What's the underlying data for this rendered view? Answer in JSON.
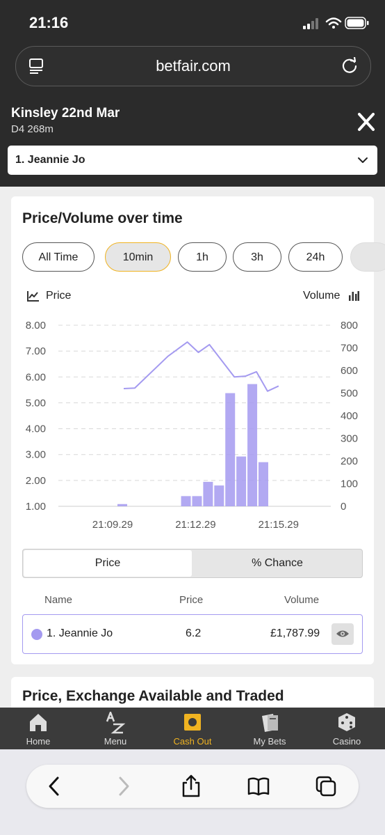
{
  "status": {
    "time": "21:16"
  },
  "browser": {
    "url": "betfair.com"
  },
  "market": {
    "title": "Kinsley 22nd Mar",
    "subtitle": "D4 268m",
    "selected_runner": "1. Jeannie Jo"
  },
  "card": {
    "title": "Price/Volume over time",
    "ranges": [
      "All Time",
      "10min",
      "1h",
      "3h",
      "24h"
    ],
    "active_range": "10min",
    "legend_price": "Price",
    "legend_volume": "Volume"
  },
  "chart_data": {
    "type": "bar+line",
    "x_ticks": [
      "21:09.29",
      "21:12.29",
      "21:15.29"
    ],
    "y_left_ticks": [
      "8.00",
      "7.00",
      "6.00",
      "5.00",
      "4.00",
      "3.00",
      "2.00",
      "1.00"
    ],
    "y_right_ticks": [
      "800",
      "700",
      "600",
      "500",
      "400",
      "300",
      "200",
      "100",
      "0"
    ],
    "y_left_range": [
      1,
      8
    ],
    "y_right_range": [
      0,
      800
    ],
    "grid": "dashed horizontal",
    "colors": {
      "series": "#a49af0"
    },
    "price_line": {
      "x_minutes": [
        0.0,
        0.4,
        1.6,
        2.3,
        2.7,
        3.1,
        4.0,
        4.4,
        4.8,
        5.2,
        5.6
      ],
      "y": [
        5.55,
        5.57,
        6.8,
        7.35,
        6.95,
        7.25,
        6.0,
        6.03,
        6.2,
        5.45,
        5.65
      ]
    },
    "volume_bars": {
      "x_minutes": [
        0.0,
        2.3,
        2.7,
        3.1,
        3.5,
        3.9,
        4.3,
        4.7,
        5.1
      ],
      "y": [
        10,
        45,
        45,
        108,
        92,
        500,
        220,
        540,
        195
      ]
    }
  },
  "toggle": {
    "price": "Price",
    "chance": "% Chance"
  },
  "table": {
    "headers": {
      "name": "Name",
      "price": "Price",
      "volume": "Volume"
    },
    "row": {
      "name": "1. Jeannie Jo",
      "price": "6.2",
      "volume": "£1,787.99"
    }
  },
  "card2": {
    "title": "Price, Exchange Available and Traded"
  },
  "nav": [
    {
      "label": "Home",
      "icon": "home-icon"
    },
    {
      "label": "Menu",
      "icon": "az-menu-icon"
    },
    {
      "label": "Cash Out",
      "icon": "cash-out-icon",
      "active": true
    },
    {
      "label": "My Bets",
      "icon": "my-bets-icon"
    },
    {
      "label": "Casino",
      "icon": "dice-icon"
    }
  ]
}
